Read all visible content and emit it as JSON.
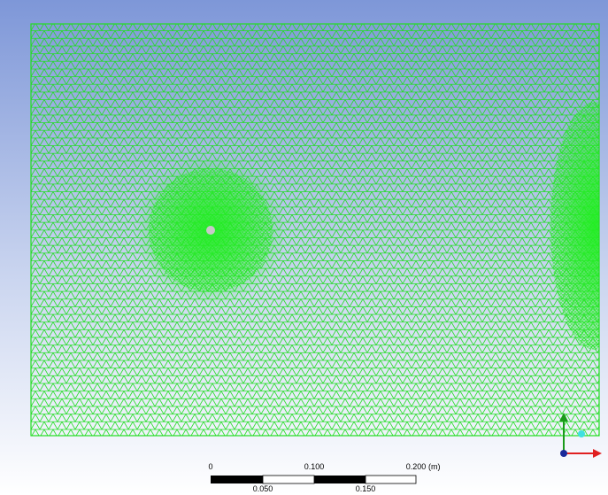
{
  "scale_bar": {
    "top_labels": [
      "0",
      "0.100",
      "0.200"
    ],
    "unit": "(m)",
    "bottom_labels": [
      "0.050",
      "0.150"
    ]
  }
}
